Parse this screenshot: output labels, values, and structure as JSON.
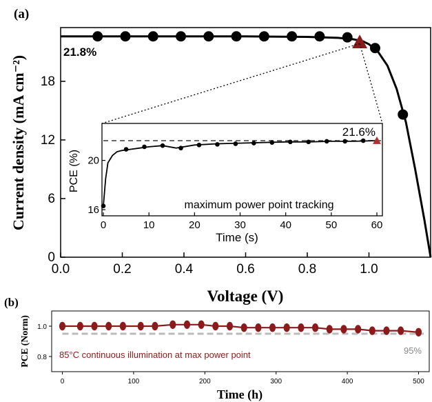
{
  "panel_a_label": "(a)",
  "panel_b_label": "(b)",
  "colors": {
    "accent": "#8b1a1a",
    "dashed": "#aaaaaa",
    "line": "#000000"
  },
  "chart_data": [
    {
      "id": "jv-curve",
      "type": "line",
      "xlabel": "Voltage (V)",
      "ylabel": "Current density (mA cm⁻²)",
      "xlim": [
        0.0,
        1.2
      ],
      "ylim": [
        0,
        23.5
      ],
      "x_ticks": [
        0.0,
        0.2,
        0.4,
        0.6,
        0.8,
        1.0
      ],
      "x_tick_labels": [
        "0.0",
        "0.2",
        "0.4",
        "0.6",
        "0.8",
        "1.0"
      ],
      "y_ticks": [
        0,
        6,
        12,
        18
      ],
      "y_tick_labels": [
        "0",
        "6",
        "12",
        "18"
      ],
      "annotation": "21.8%",
      "curve": {
        "x": [
          0.0,
          0.2,
          0.4,
          0.6,
          0.8,
          0.9,
          0.95,
          0.98,
          1.0,
          1.03,
          1.06,
          1.09,
          1.12,
          1.15,
          1.18,
          1.2
        ],
        "y": [
          22.6,
          22.6,
          22.6,
          22.6,
          22.55,
          22.45,
          22.3,
          22.1,
          21.8,
          21.0,
          19.6,
          17.2,
          13.8,
          9.0,
          3.8,
          0
        ]
      },
      "markers": {
        "x": [
          0.12,
          0.21,
          0.3,
          0.39,
          0.48,
          0.57,
          0.66,
          0.75,
          0.84,
          0.93,
          1.02,
          1.11
        ],
        "y": [
          22.6,
          22.6,
          22.6,
          22.6,
          22.6,
          22.6,
          22.6,
          22.6,
          22.6,
          22.5,
          21.4,
          14.6
        ]
      },
      "mpp": {
        "x": 0.97,
        "y": 22.0
      }
    },
    {
      "id": "mpp-tracking-inset",
      "type": "line",
      "xlabel": "Time (s)",
      "ylabel": "PCE (%)",
      "xlim": [
        0,
        60
      ],
      "ylim": [
        15.5,
        23
      ],
      "x_ticks": [
        0,
        10,
        20,
        30,
        40,
        50,
        60
      ],
      "x_tick_labels": [
        "0",
        "10",
        "20",
        "30",
        "40",
        "50",
        "60"
      ],
      "y_ticks": [
        16,
        20
      ],
      "y_tick_labels": [
        "16",
        "20"
      ],
      "annotation": "maximum power point tracking",
      "value_label": "21.6%",
      "reference": 21.6,
      "curve": {
        "x": [
          0,
          0.5,
          1,
          2,
          3,
          4,
          6,
          8,
          10,
          13,
          16,
          20,
          25,
          30,
          35,
          40,
          45,
          50,
          55,
          60
        ],
        "y": [
          16.3,
          18.5,
          19.8,
          20.4,
          20.7,
          20.8,
          20.9,
          21.0,
          21.1,
          21.2,
          21.0,
          21.25,
          21.35,
          21.4,
          21.45,
          21.5,
          21.5,
          21.55,
          21.55,
          21.6
        ]
      },
      "markers": {
        "x": [
          0,
          5,
          9,
          13,
          17,
          21,
          25,
          29,
          33,
          37,
          41,
          45,
          49,
          53,
          57
        ],
        "y": [
          16.3,
          20.9,
          21.1,
          21.2,
          21.0,
          21.25,
          21.3,
          21.35,
          21.4,
          21.45,
          21.5,
          21.5,
          21.55,
          21.55,
          21.6
        ]
      },
      "end_marker": {
        "x": 60,
        "y": 21.6
      }
    },
    {
      "id": "stability",
      "type": "line",
      "xlabel": "Time (h)",
      "ylabel": "PCE (Norm)",
      "xlim": [
        -15,
        515
      ],
      "ylim": [
        0.7,
        1.1
      ],
      "x_ticks": [
        0,
        100,
        200,
        300,
        400,
        500
      ],
      "x_tick_labels": [
        "0",
        "100",
        "200",
        "300",
        "400",
        "500"
      ],
      "y_ticks": [
        0.8,
        1.0
      ],
      "y_tick_labels": [
        "0.8",
        "1.0"
      ],
      "reference": 0.95,
      "reference_label": "95%",
      "annotation": "85°C continuous illumination at max power point",
      "series": [
        {
          "x": [
            0,
            25,
            45,
            65,
            85,
            110,
            130,
            155,
            175,
            195,
            215,
            235,
            255,
            275,
            295,
            315,
            335,
            355,
            375,
            395,
            415,
            435,
            455,
            475,
            500
          ],
          "y": [
            1.0,
            1.0,
            1.0,
            1.0,
            1.0,
            1.0,
            1.0,
            1.01,
            1.01,
            1.01,
            1.0,
            1.0,
            0.99,
            0.99,
            0.99,
            0.99,
            0.99,
            0.99,
            0.98,
            0.98,
            0.98,
            0.97,
            0.97,
            0.97,
            0.96
          ]
        }
      ]
    }
  ]
}
